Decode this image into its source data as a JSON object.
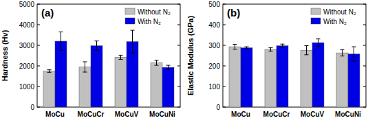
{
  "chart_data": [
    {
      "type": "bar",
      "annotations": [
        "(a)"
      ],
      "y_label": "Hardness (Hv)",
      "categories": [
        "MoCu",
        "MoCuCr",
        "MoCuV",
        "MoCuNi"
      ],
      "series": [
        {
          "name": "Without N₂",
          "color": "#c0c0c0",
          "values": [
            1750,
            1950,
            2420,
            2150
          ],
          "errors": [
            60,
            250,
            100,
            120
          ]
        },
        {
          "name": "With N₂",
          "color": "#0000e6",
          "values": [
            3200,
            2980,
            3180,
            1930
          ],
          "errors": [
            450,
            230,
            550,
            100
          ]
        }
      ],
      "ylim": [
        0,
        5000
      ],
      "yticks": [
        0,
        1000,
        2000,
        3000,
        4000,
        5000
      ],
      "legend": "upper right",
      "grid": false
    },
    {
      "type": "bar",
      "annotations": [
        "(b)"
      ],
      "y_label": "Elastic Modulus (GPa)",
      "categories": [
        "MoCu",
        "MoCuCr",
        "MoCuV",
        "MoCuNi"
      ],
      "series": [
        {
          "name": "Without N₂",
          "color": "#c0c0c0",
          "values": [
            293,
            280,
            276,
            263
          ],
          "errors": [
            12,
            8,
            22,
            15
          ]
        },
        {
          "name": "With N₂",
          "color": "#0000e6",
          "values": [
            288,
            298,
            313,
            258
          ],
          "errors": [
            5,
            8,
            18,
            35
          ]
        }
      ],
      "ylim": [
        0,
        500
      ],
      "yticks": [
        0,
        100,
        200,
        300,
        400,
        500
      ],
      "legend": "upper right",
      "grid": false
    }
  ]
}
